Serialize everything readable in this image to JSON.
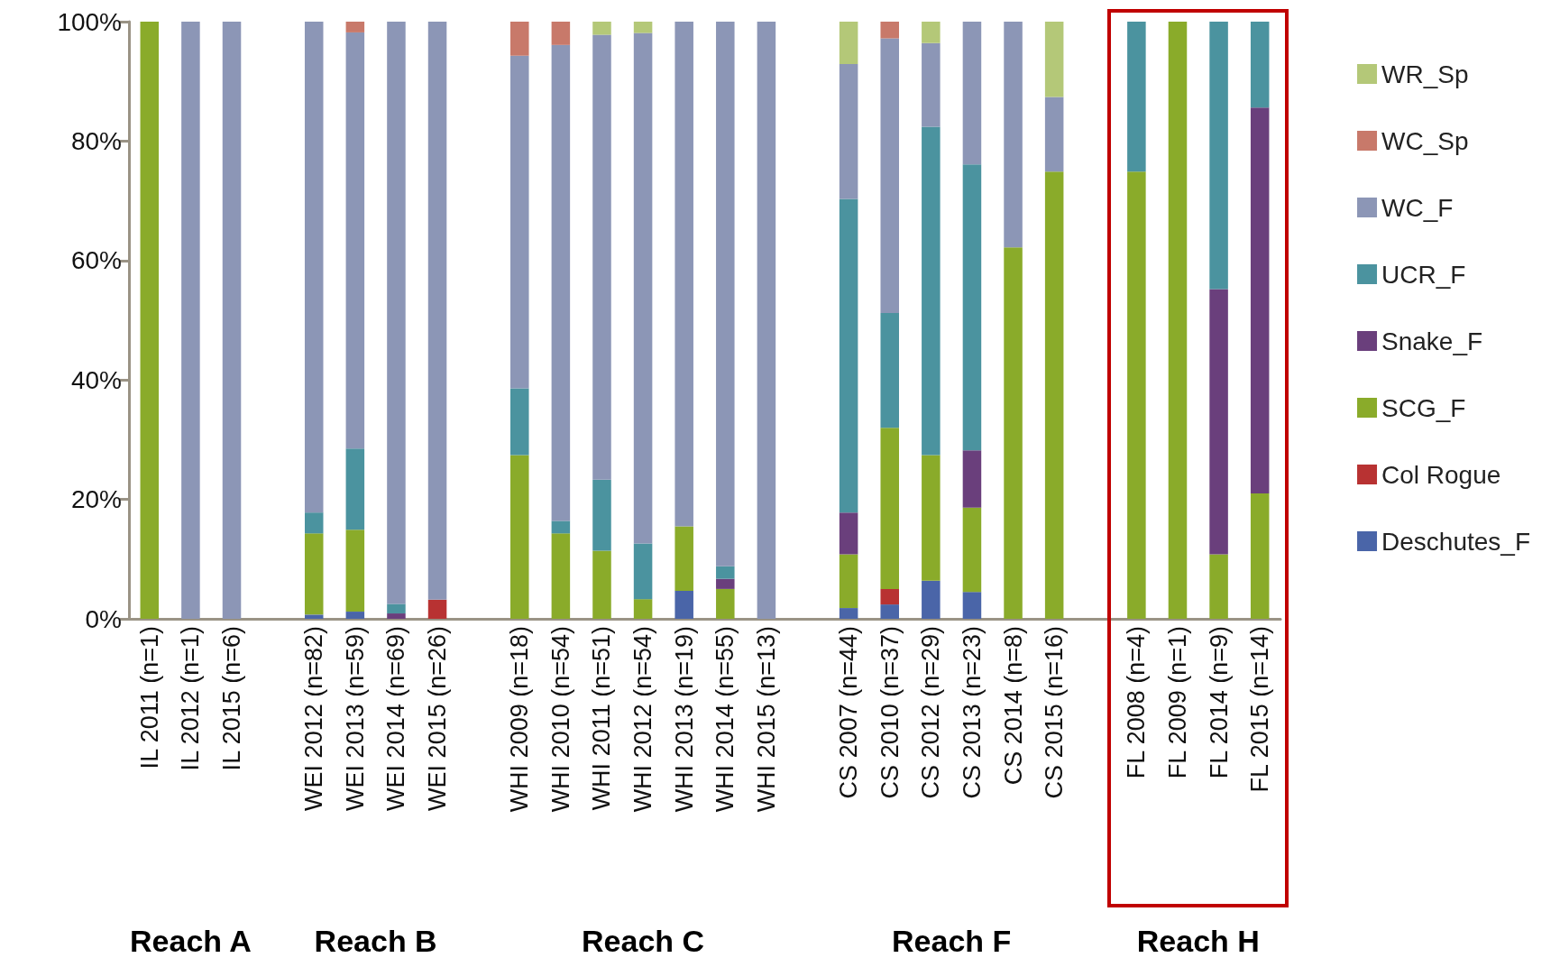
{
  "chart_data": {
    "type": "bar",
    "stacked": true,
    "categories": [
      "IL 2011 (n=1)",
      "IL 2012 (n=1)",
      "IL 2015 (n=6)",
      null,
      "WEI 2012 (n=82)",
      "WEI 2013 (n=59)",
      "WEI 2014 (n=69)",
      "WEI 2015 (n=26)",
      null,
      "WHI 2009 (n=18)",
      "WHI 2010 (n=54)",
      "WHI 2011 (n=51)",
      "WHI 2012 (n=54)",
      "WHI 2013 (n=19)",
      "WHI 2014 (n=55)",
      "WHI 2015 (n=13)",
      null,
      "CS 2007 (n=44)",
      "CS 2010 (n=37)",
      "CS 2012 (n=29)",
      "CS 2013 (n=23)",
      "CS 2014 (n=8)",
      "CS 2015 (n=16)",
      null,
      "FL 2008 (n=4)",
      "FL 2009 (n=1)",
      "FL 2014 (n=9)",
      "FL 2015 (n=14)"
    ],
    "series": [
      {
        "name": "Deschutes_F",
        "color": "#4a65a8",
        "values": [
          0,
          0,
          0,
          null,
          0.7,
          1.2,
          0,
          0,
          null,
          0,
          0,
          0,
          0,
          4.7,
          0,
          0,
          null,
          1.8,
          2.4,
          6.4,
          4.5,
          0,
          0,
          null,
          0,
          0,
          0,
          0
        ]
      },
      {
        "name": "Col Rogue",
        "color": "#b83232",
        "values": [
          0,
          0,
          0,
          null,
          0,
          0,
          0,
          3.2,
          null,
          0,
          0,
          0,
          0,
          0,
          0,
          0,
          null,
          0,
          2.6,
          0,
          0,
          0,
          0,
          null,
          0,
          0,
          0,
          0
        ]
      },
      {
        "name": "SCG_F",
        "color": "#8aab2a",
        "values": [
          100,
          0,
          0,
          null,
          13.6,
          13.7,
          0,
          0,
          null,
          27.4,
          14.3,
          11.4,
          3.3,
          10.8,
          5.0,
          0,
          null,
          9.0,
          27.0,
          21.0,
          14.1,
          62.2,
          74.9,
          null,
          74.9,
          100,
          10.8,
          21.0
        ]
      },
      {
        "name": "Snake_F",
        "color": "#6a3f7c",
        "values": [
          0,
          0,
          0,
          null,
          0,
          0,
          0.9,
          0,
          null,
          0,
          0,
          0,
          0,
          0,
          1.7,
          0,
          null,
          7.0,
          0,
          0,
          9.6,
          0,
          0,
          null,
          0,
          0,
          44.4,
          64.6
        ]
      },
      {
        "name": "UCR_F",
        "color": "#4b939f",
        "values": [
          0,
          0,
          0,
          null,
          3.5,
          13.6,
          1.6,
          0,
          null,
          11.2,
          2.1,
          11.9,
          9.3,
          0,
          2.1,
          0,
          null,
          52.5,
          19.2,
          55.0,
          47.9,
          0,
          0,
          null,
          25.1,
          0,
          44.8,
          14.4
        ]
      },
      {
        "name": "WC_F",
        "color": "#8c96b6",
        "values": [
          0,
          100,
          100,
          null,
          82.2,
          69.7,
          97.5,
          96.8,
          null,
          55.7,
          79.7,
          74.5,
          85.5,
          84.5,
          91.2,
          100,
          null,
          22.6,
          46.0,
          14.0,
          23.9,
          37.8,
          12.5,
          null,
          0,
          0,
          0,
          0
        ]
      },
      {
        "name": "WC_Sp",
        "color": "#c8796a",
        "values": [
          0,
          0,
          0,
          null,
          0,
          1.8,
          0,
          0,
          null,
          5.7,
          3.9,
          0,
          0,
          0,
          0,
          0,
          null,
          0,
          2.8,
          0,
          0,
          0,
          0,
          null,
          0,
          0,
          0,
          0
        ]
      },
      {
        "name": "WR_Sp",
        "color": "#b4c878",
        "values": [
          0,
          0,
          0,
          null,
          0,
          0,
          0,
          0,
          null,
          0,
          0,
          2.2,
          1.9,
          0,
          0,
          0,
          null,
          7.1,
          0,
          3.6,
          0,
          0,
          12.6,
          null,
          0,
          0,
          0,
          0
        ]
      }
    ],
    "ylim": [
      0,
      100
    ],
    "yticks": [
      {
        "value": 0,
        "label": "0%"
      },
      {
        "value": 20,
        "label": "20%"
      },
      {
        "value": 40,
        "label": "40%"
      },
      {
        "value": 60,
        "label": "60%"
      },
      {
        "value": 80,
        "label": "80%"
      },
      {
        "value": 100,
        "label": "100%"
      }
    ],
    "legend": "right",
    "grid": false,
    "annotations": [
      "Reach A",
      "Reach B",
      "Reach C",
      "Reach F",
      "Reach H"
    ]
  }
}
